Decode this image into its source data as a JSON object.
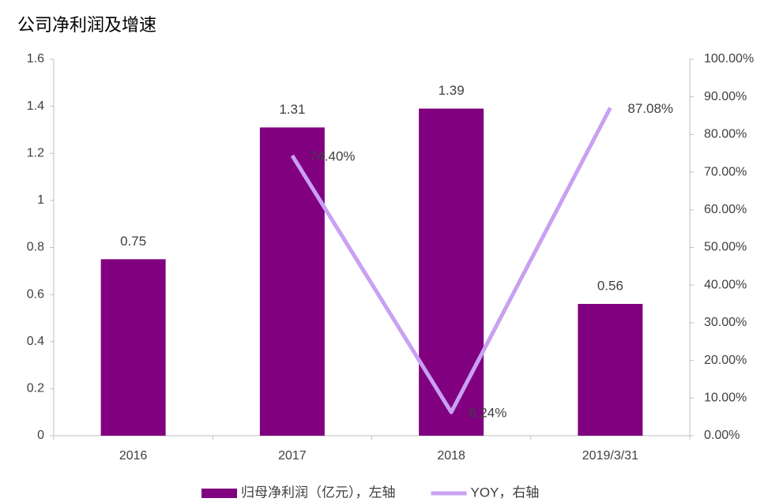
{
  "chart_data": {
    "type": "bar",
    "title": "公司净利润及增速",
    "categories": [
      "2016",
      "2017",
      "2018",
      "2019/3/31"
    ],
    "series": [
      {
        "name": "归母净利润（亿元），左轴",
        "type": "bar",
        "color": "#800080",
        "values": [
          0.75,
          1.31,
          1.39,
          0.56
        ]
      },
      {
        "name": "YOY，右轴",
        "type": "line",
        "axis": "y2",
        "color": "#c9a0f2",
        "values": [
          null,
          74.4,
          6.24,
          87.08
        ],
        "value_labels": [
          null,
          "74.40%",
          "6.24%",
          "87.08%"
        ]
      }
    ],
    "ylim": [
      0,
      1.6
    ],
    "yticks": [
      0,
      0.2,
      0.4,
      0.6,
      0.8,
      1,
      1.2,
      1.4,
      1.6
    ],
    "y2lim": [
      0,
      100
    ],
    "y2ticks": [
      {
        "value": 0,
        "label": "0.00%"
      },
      {
        "value": 10,
        "label": "10.00%"
      },
      {
        "value": 20,
        "label": "20.00%"
      },
      {
        "value": 30,
        "label": "30.00%"
      },
      {
        "value": 40,
        "label": "40.00%"
      },
      {
        "value": 50,
        "label": "50.00%"
      },
      {
        "value": 60,
        "label": "60.00%"
      },
      {
        "value": 70,
        "label": "70.00%"
      },
      {
        "value": 80,
        "label": "80.00%"
      },
      {
        "value": 90,
        "label": "90.00%"
      },
      {
        "value": 100,
        "label": "100.00%"
      }
    ],
    "grid": false,
    "legend": "bottom"
  }
}
